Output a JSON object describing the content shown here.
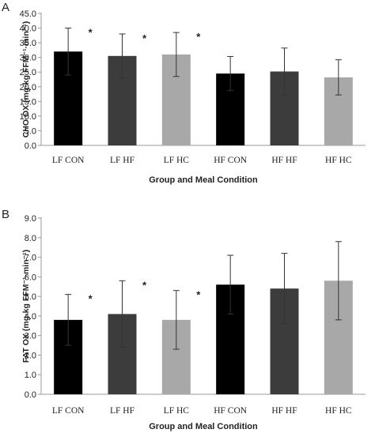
{
  "chart_data": [
    {
      "panel": "A",
      "type": "bar",
      "categories": [
        "LF CON",
        "LF HF",
        "LF HC",
        "HF CON",
        "HF HF",
        "HF HC"
      ],
      "values": [
        32.0,
        30.5,
        31.0,
        24.5,
        25.2,
        23.2
      ],
      "error": [
        8.0,
        7.5,
        7.5,
        5.8,
        8.0,
        6.0
      ],
      "significant": [
        "*",
        "*",
        "*",
        "",
        "",
        ""
      ],
      "bar_colors": [
        "#000000",
        "#3c3c3c",
        "#a8a8a8",
        "#000000",
        "#3c3c3c",
        "#a8a8a8"
      ],
      "xlabel": "Group and Meal Condition",
      "ylabel": "CHO OX (mg·kg FFM⁻¹·min⁻¹)",
      "ylim": [
        0,
        45
      ],
      "yticks": [
        "0.0",
        "5.0",
        "10.0",
        "15.0",
        "20.0",
        "25.0",
        "30.0",
        "35.0",
        "40.0",
        "45.0"
      ],
      "grid": false
    },
    {
      "panel": "B",
      "type": "bar",
      "categories": [
        "LF CON",
        "LF HF",
        "LF HC",
        "HF CON",
        "HF HF",
        "HF HC"
      ],
      "values": [
        3.8,
        4.1,
        3.8,
        5.6,
        5.4,
        5.8
      ],
      "error": [
        1.3,
        1.7,
        1.5,
        1.5,
        1.8,
        2.0
      ],
      "significant": [
        "*",
        "*",
        "*",
        "",
        "",
        ""
      ],
      "bar_colors": [
        "#000000",
        "#3c3c3c",
        "#a8a8a8",
        "#000000",
        "#3c3c3c",
        "#a8a8a8"
      ],
      "xlabel": "Group and Meal Condition",
      "ylabel": "FAT OX (mg·kg FFM⁻¹·min⁻¹)",
      "ylim": [
        0,
        9
      ],
      "yticks": [
        "0.0",
        "1.0",
        "2.0",
        "3.0",
        "4.0",
        "5.0",
        "6.0",
        "7.0",
        "8.0",
        "9.0"
      ],
      "grid": false
    }
  ]
}
